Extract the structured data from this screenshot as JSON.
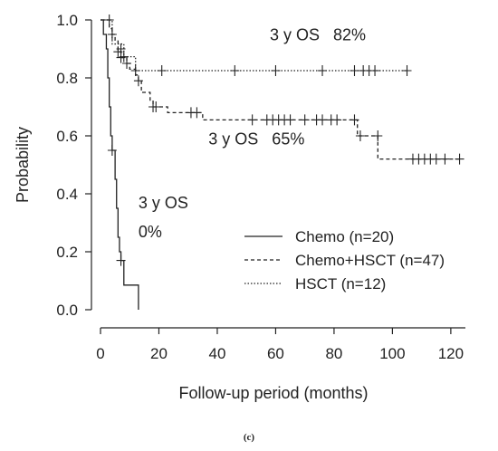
{
  "chart_data": {
    "type": "line",
    "subtype": "kaplan-meier",
    "xlabel": "Follow-up period (months)",
    "ylabel": "Probability",
    "xlim": [
      0,
      125
    ],
    "ylim": [
      0,
      1.0
    ],
    "xticks": [
      0,
      20,
      40,
      60,
      80,
      100,
      120
    ],
    "yticks": [
      0.0,
      0.2,
      0.4,
      0.6,
      0.8,
      1.0
    ],
    "xtick_labels": [
      "0",
      "20",
      "40",
      "60",
      "80",
      "100",
      "120"
    ],
    "ytick_labels": [
      "0.0",
      "0.2",
      "0.4",
      "0.6",
      "0.8",
      "1.0"
    ],
    "grid": false,
    "legend_position": "lower-right",
    "caption": "(c)",
    "annotations": [
      {
        "text": "3 y OS   82%",
        "x": 58,
        "y": 0.93
      },
      {
        "text": "3 y OS   65%",
        "x": 37,
        "y": 0.57
      },
      {
        "text": "3 y OS",
        "x": 13,
        "y": 0.35
      },
      {
        "text": "0%",
        "x": 13,
        "y": 0.25
      }
    ],
    "series": [
      {
        "name": "Chemo (n=20)",
        "style": "solid",
        "steps": [
          [
            0,
            1.0
          ],
          [
            1,
            0.95
          ],
          [
            2,
            0.9
          ],
          [
            2.5,
            0.8
          ],
          [
            3,
            0.7
          ],
          [
            3.5,
            0.6
          ],
          [
            4,
            0.55
          ],
          [
            5,
            0.45
          ],
          [
            5.5,
            0.35
          ],
          [
            6,
            0.25
          ],
          [
            6.5,
            0.2
          ],
          [
            7,
            0.17
          ],
          [
            8,
            0.085
          ],
          [
            13,
            0.0
          ]
        ],
        "censored": [
          [
            4,
            0.55
          ],
          [
            7,
            0.17
          ]
        ]
      },
      {
        "name": "Chemo+HSCT (n=47)",
        "style": "dashed",
        "steps": [
          [
            0,
            1.0
          ],
          [
            3,
            0.97
          ],
          [
            4,
            0.95
          ],
          [
            5,
            0.93
          ],
          [
            6,
            0.89
          ],
          [
            7,
            0.87
          ],
          [
            9,
            0.85
          ],
          [
            10,
            0.83
          ],
          [
            12,
            0.81
          ],
          [
            13,
            0.79
          ],
          [
            14,
            0.75
          ],
          [
            17,
            0.72
          ],
          [
            18,
            0.7
          ],
          [
            23,
            0.68
          ],
          [
            35,
            0.655
          ],
          [
            88,
            0.6
          ],
          [
            95,
            0.52
          ],
          [
            123,
            0.52
          ]
        ],
        "censored": [
          [
            4,
            0.95
          ],
          [
            6,
            0.89
          ],
          [
            7,
            0.87
          ],
          [
            9,
            0.85
          ],
          [
            13,
            0.79
          ],
          [
            18,
            0.7
          ],
          [
            19,
            0.7
          ],
          [
            31,
            0.68
          ],
          [
            33,
            0.68
          ],
          [
            52,
            0.655
          ],
          [
            57,
            0.655
          ],
          [
            59,
            0.655
          ],
          [
            61,
            0.655
          ],
          [
            63,
            0.655
          ],
          [
            65,
            0.655
          ],
          [
            70,
            0.655
          ],
          [
            74,
            0.655
          ],
          [
            76,
            0.655
          ],
          [
            79,
            0.655
          ],
          [
            81,
            0.655
          ],
          [
            87,
            0.655
          ],
          [
            89,
            0.6
          ],
          [
            95,
            0.6
          ],
          [
            107,
            0.52
          ],
          [
            109,
            0.52
          ],
          [
            111,
            0.52
          ],
          [
            113,
            0.52
          ],
          [
            115,
            0.52
          ],
          [
            118,
            0.52
          ],
          [
            123,
            0.52
          ]
        ]
      },
      {
        "name": "HSCT (n=12)",
        "style": "dotted",
        "steps": [
          [
            0,
            1.0
          ],
          [
            4,
            0.917
          ],
          [
            8,
            0.873
          ],
          [
            12,
            0.825
          ],
          [
            105,
            0.825
          ]
        ],
        "censored": [
          [
            3,
            1.0
          ],
          [
            7,
            0.9
          ],
          [
            8,
            0.873
          ],
          [
            12,
            0.825
          ],
          [
            21,
            0.825
          ],
          [
            46,
            0.825
          ],
          [
            60,
            0.825
          ],
          [
            76,
            0.825
          ],
          [
            87,
            0.825
          ],
          [
            90,
            0.825
          ],
          [
            92,
            0.825
          ],
          [
            94,
            0.825
          ],
          [
            105,
            0.825
          ]
        ]
      }
    ]
  }
}
